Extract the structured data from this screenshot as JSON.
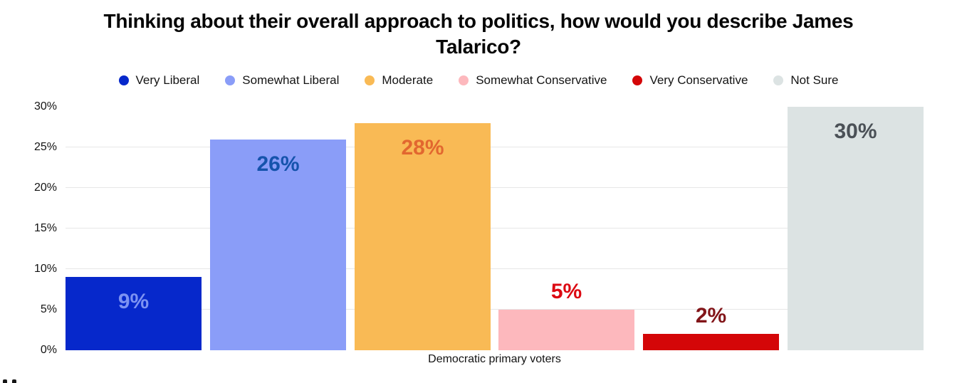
{
  "chart_data": {
    "type": "bar",
    "title": "Thinking about their overall approach to politics, how would you describe James Talarico?",
    "xlabel": "Democratic primary voters",
    "ylabel": "",
    "ylim": [
      0,
      30
    ],
    "yticks": [
      0,
      5,
      10,
      15,
      20,
      25,
      30
    ],
    "ytick_labels": [
      "0%",
      "5%",
      "10%",
      "15%",
      "20%",
      "25%",
      "30%"
    ],
    "gridline_values": [
      5,
      10,
      15,
      20,
      25
    ],
    "grid": true,
    "legend_position": "top",
    "categories": [
      "Very Liberal",
      "Somewhat Liberal",
      "Moderate",
      "Somewhat Conservative",
      "Very Conservative",
      "Not Sure"
    ],
    "values": [
      9,
      26,
      28,
      5,
      2,
      30
    ],
    "points": [
      {
        "category": "Very Liberal",
        "value": 9,
        "label": "9%",
        "bar_color": "#0628cb",
        "label_color": "#7d93f2",
        "label_position": "inside"
      },
      {
        "category": "Somewhat Liberal",
        "value": 26,
        "label": "26%",
        "bar_color": "#8a9df8",
        "label_color": "#1553ac",
        "label_position": "inside"
      },
      {
        "category": "Moderate",
        "value": 28,
        "label": "28%",
        "bar_color": "#f9ba55",
        "label_color": "#e2672f",
        "label_position": "inside"
      },
      {
        "category": "Somewhat Conservative",
        "value": 5,
        "label": "5%",
        "bar_color": "#fdb8bd",
        "label_color": "#dc0912",
        "label_position": "above"
      },
      {
        "category": "Very Conservative",
        "value": 2,
        "label": "2%",
        "bar_color": "#d40608",
        "label_color": "#821519",
        "label_position": "above"
      },
      {
        "category": "Not Sure",
        "value": 30,
        "label": "30%",
        "bar_color": "#dce3e3",
        "label_color": "#4b5157",
        "label_position": "inside"
      }
    ]
  }
}
